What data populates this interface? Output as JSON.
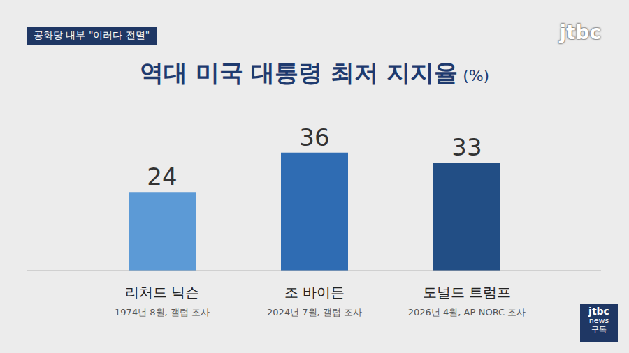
{
  "chart_data": {
    "type": "bar",
    "title": "역대 미국 대통령 최저 지지율 (%)",
    "categories": [
      "리처드 닉슨",
      "조 바이든",
      "도널드 트럼프"
    ],
    "category_notes": [
      "1974년 8월, 갤럽 조사",
      "2024년 7월, 갤럽 조사",
      "2026년 4월, AP-NORC 조사"
    ],
    "values": [
      24,
      36,
      33
    ],
    "colors": [
      "#5c9ad6",
      "#2f6cb3",
      "#224e85"
    ],
    "ylim": [
      0,
      40
    ],
    "yticks": [
      0,
      20,
      40
    ],
    "grid": true,
    "data_labels": true,
    "tick_labels": "x"
  },
  "overlay": {
    "tag": "공화당 내부 \"이러다 전멸\"",
    "logo": "jtbc",
    "badge": [
      "jtbc",
      "news",
      "구독"
    ]
  }
}
